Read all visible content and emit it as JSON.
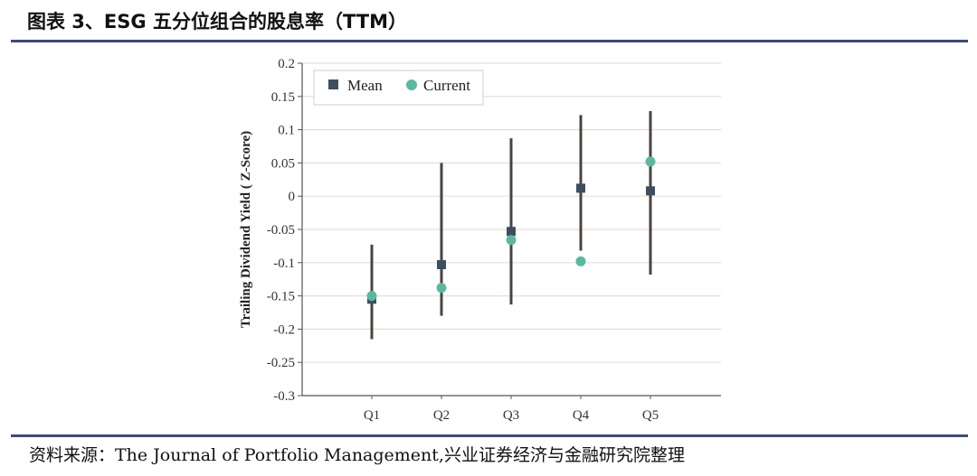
{
  "header": {
    "title": "图表 3、ESG 五分位组合的股息率（TTM）"
  },
  "footer": {
    "source": "资料来源：The Journal of Portfolio Management,兴业证券经济与金融研究院整理"
  },
  "chart_data": {
    "type": "scatter",
    "categories": [
      "Q1",
      "Q2",
      "Q3",
      "Q4",
      "Q5"
    ],
    "ylabel": "Trailing Dividend Yield ( Z-Score)",
    "xlabel": "",
    "ylim": [
      -0.3,
      0.2
    ],
    "yticks": [
      "0.2",
      "0.15",
      "0.1",
      "0.05",
      "0",
      "-0.05",
      "-0.1",
      "-0.15",
      "-0.2",
      "-0.25",
      "-0.3"
    ],
    "grid": true,
    "legend_position": "top-left",
    "series": [
      {
        "name": "Mean",
        "marker": "square",
        "color": "#3d4f5f",
        "values": [
          -0.155,
          -0.103,
          -0.053,
          0.012,
          0.008
        ]
      },
      {
        "name": "Current",
        "marker": "circle",
        "color": "#5bb8a0",
        "values": [
          -0.15,
          -0.138,
          -0.066,
          -0.098,
          0.052
        ]
      }
    ],
    "error_bars": {
      "color": "#4a4340",
      "low": [
        -0.215,
        -0.18,
        -0.163,
        -0.082,
        -0.118
      ],
      "high": [
        -0.073,
        0.05,
        0.087,
        0.122,
        0.128
      ]
    }
  }
}
